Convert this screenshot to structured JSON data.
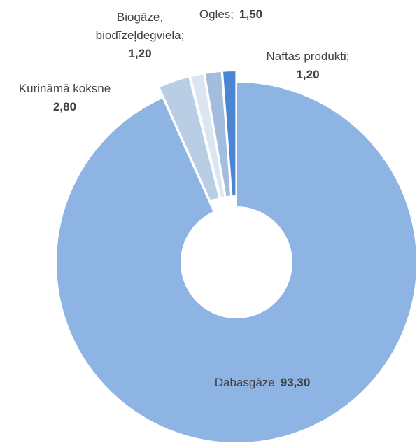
{
  "chart_data": {
    "type": "donut",
    "categories": [
      "Dabasgāze",
      "Kurināmā koksne",
      "Biogāze, biodīzeļdegviela;",
      "Ogles;",
      "Naftas produkti;"
    ],
    "values": [
      93.3,
      2.8,
      1.2,
      1.5,
      1.2
    ],
    "value_labels": [
      "93,30",
      "2,80",
      "1,20",
      "1,50",
      "1,20"
    ],
    "colors": [
      "#8eb4e3",
      "#b9cde5",
      "#dce6f2",
      "#a3bddf",
      "#4a86d4"
    ]
  }
}
